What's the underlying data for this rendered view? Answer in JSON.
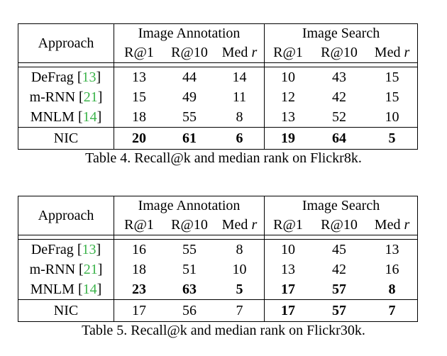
{
  "tables": [
    {
      "caption": "Table 4. Recall@k and median rank on Flickr8k.",
      "header": {
        "approach": "Approach",
        "group1": "Image Annotation",
        "group2": "Image Search",
        "cols": [
          "R@1",
          "R@10",
          "Med"
        ],
        "med_var": "r"
      },
      "rows": [
        {
          "name": "DeFrag",
          "cite": "13",
          "cells": [
            "13",
            "44",
            "14",
            "10",
            "43",
            "15"
          ],
          "bold": [
            false,
            false,
            false,
            false,
            false,
            false
          ]
        },
        {
          "name": "m-RNN",
          "cite": "21",
          "cells": [
            "15",
            "49",
            "11",
            "12",
            "42",
            "15"
          ],
          "bold": [
            false,
            false,
            false,
            false,
            false,
            false
          ]
        },
        {
          "name": "MNLM",
          "cite": "14",
          "cells": [
            "18",
            "55",
            "8",
            "13",
            "52",
            "10"
          ],
          "bold": [
            false,
            false,
            false,
            false,
            false,
            false
          ]
        },
        {
          "name": "NIC",
          "cite": "",
          "cells": [
            "20",
            "61",
            "6",
            "19",
            "64",
            "5"
          ],
          "bold": [
            true,
            true,
            true,
            true,
            true,
            true
          ]
        }
      ]
    },
    {
      "caption": "Table 5. Recall@k and median rank on Flickr30k.",
      "header": {
        "approach": "Approach",
        "group1": "Image Annotation",
        "group2": "Image Search",
        "cols": [
          "R@1",
          "R@10",
          "Med"
        ],
        "med_var": "r"
      },
      "rows": [
        {
          "name": "DeFrag",
          "cite": "13",
          "cells": [
            "16",
            "55",
            "8",
            "10",
            "45",
            "13"
          ],
          "bold": [
            false,
            false,
            false,
            false,
            false,
            false
          ]
        },
        {
          "name": "m-RNN",
          "cite": "21",
          "cells": [
            "18",
            "51",
            "10",
            "13",
            "42",
            "16"
          ],
          "bold": [
            false,
            false,
            false,
            false,
            false,
            false
          ]
        },
        {
          "name": "MNLM",
          "cite": "14",
          "cells": [
            "23",
            "63",
            "5",
            "17",
            "57",
            "8"
          ],
          "bold": [
            true,
            true,
            true,
            true,
            true,
            true
          ]
        },
        {
          "name": "NIC",
          "cite": "",
          "cells": [
            "17",
            "56",
            "7",
            "17",
            "57",
            "7"
          ],
          "bold": [
            false,
            false,
            false,
            true,
            true,
            true
          ]
        }
      ]
    }
  ]
}
